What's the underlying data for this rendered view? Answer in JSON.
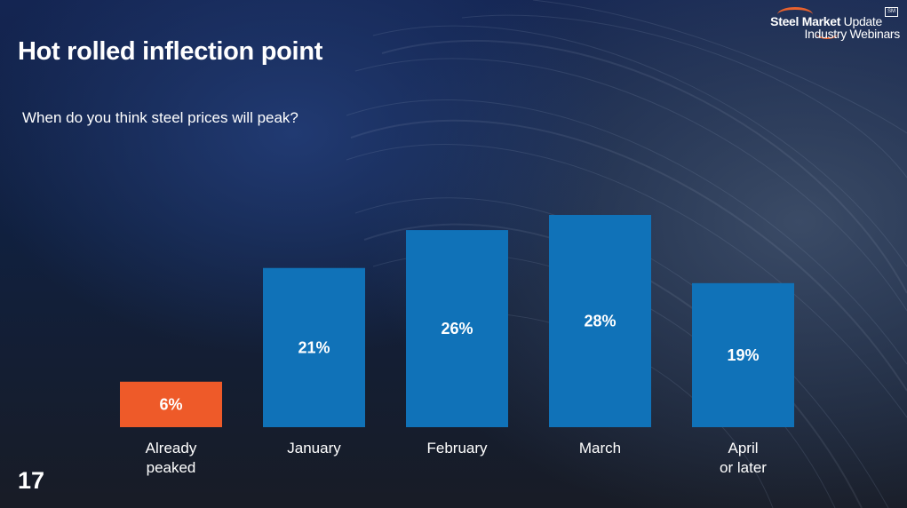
{
  "slide": {
    "title": "Hot rolled inflection point",
    "page_number": "17"
  },
  "logo": {
    "brand_bold": "Steel Market",
    "brand_light": " Update",
    "tagline": "Industry Webinars",
    "badge": "SM"
  },
  "colors": {
    "bar_default": "#1072b8",
    "bar_highlight": "#ee5a29"
  },
  "chart_data": {
    "type": "bar",
    "title": "When do you think steel prices will peak?",
    "categories": [
      "Already peaked",
      "January",
      "February",
      "March",
      "April or later"
    ],
    "category_lines": [
      [
        "Already",
        "peaked"
      ],
      [
        "January"
      ],
      [
        "February"
      ],
      [
        "March"
      ],
      [
        "April",
        "or later"
      ]
    ],
    "values": [
      6,
      21,
      26,
      28,
      19
    ],
    "value_labels": [
      "6%",
      "21%",
      "26%",
      "28%",
      "19%"
    ],
    "highlight_index": 0,
    "ylim": [
      0,
      28
    ],
    "grid": false,
    "xlabel": "",
    "ylabel": ""
  }
}
